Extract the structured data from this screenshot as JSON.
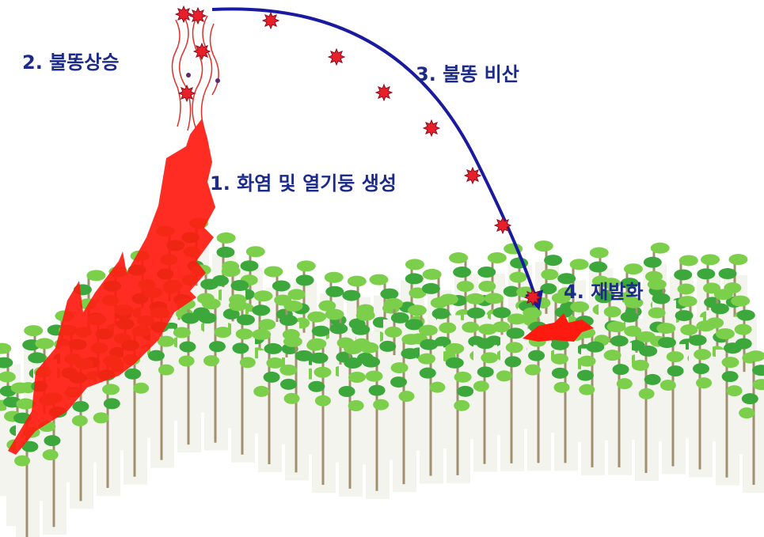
{
  "labels": {
    "step1": "1. 화염 및 열기둥 생성",
    "step2": "2. 불똥상승",
    "step3": "3. 불똥 비산",
    "step4": "4. 재발화"
  }
}
